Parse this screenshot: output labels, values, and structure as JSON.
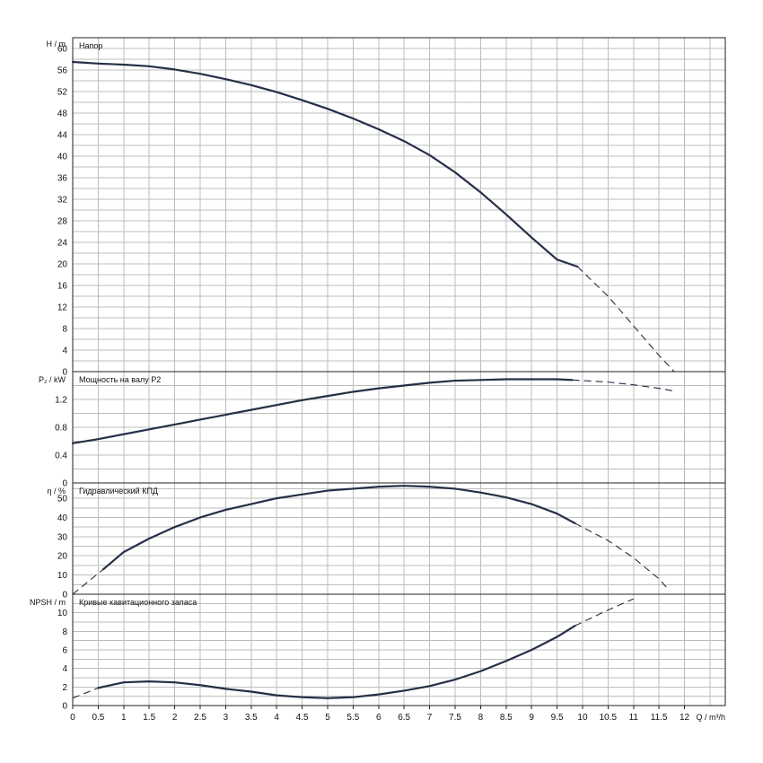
{
  "chart_data": {
    "type": "line",
    "x_axis": {
      "label": "Q / m³/h",
      "ticks": [
        "0",
        "0.5",
        "1",
        "1.5",
        "2",
        "2.5",
        "3",
        "3.5",
        "4",
        "4.5",
        "5",
        "5.5",
        "6",
        "6.5",
        "7",
        "7.5",
        "8",
        "8.5",
        "9",
        "9.5",
        "10",
        "10.5",
        "11",
        "11.5",
        "12"
      ],
      "range": [
        0,
        12.8
      ],
      "grid": true
    },
    "panels": [
      {
        "id": "head",
        "title": "Напор",
        "y_label": "H / m",
        "y_range": [
          0,
          62
        ],
        "y_ticks": [
          "0",
          "4",
          "8",
          "12",
          "16",
          "20",
          "24",
          "28",
          "32",
          "36",
          "40",
          "44",
          "48",
          "52",
          "56",
          "60"
        ],
        "series": [
          {
            "x": [
              0,
              0.5,
              1,
              1.5,
              2,
              2.5,
              3,
              3.5,
              4,
              4.5,
              5,
              5.5,
              6,
              6.5,
              7,
              7.5,
              8,
              8.5,
              9,
              9.5,
              9.9,
              10.5,
              11,
              11.5,
              11.8
            ],
            "y": [
              57.5,
              57.2,
              57.0,
              56.7,
              56.1,
              55.3,
              54.3,
              53.2,
              51.9,
              50.4,
              48.8,
              47.0,
              45.0,
              42.8,
              40.2,
              37.0,
              33.3,
              29.2,
              24.9,
              20.8,
              19.5,
              14.0,
              8.5,
              3.0,
              0.0
            ],
            "solid_until": 9.9
          }
        ]
      },
      {
        "id": "power",
        "title": "Мощность на валу P2",
        "y_label": "P₂ / kW",
        "y_range": [
          0,
          1.6
        ],
        "y_ticks": [
          "0",
          "0.4",
          "0.8",
          "1.2"
        ],
        "series": [
          {
            "x": [
              0,
              0.5,
              1,
              1.5,
              2,
              2.5,
              3,
              3.5,
              4,
              4.5,
              5,
              5.5,
              6,
              6.5,
              7,
              7.5,
              8,
              8.5,
              9,
              9.5,
              9.8,
              10.5,
              11,
              11.5,
              11.8
            ],
            "y": [
              0.57,
              0.63,
              0.7,
              0.77,
              0.84,
              0.91,
              0.98,
              1.05,
              1.12,
              1.19,
              1.25,
              1.31,
              1.36,
              1.4,
              1.44,
              1.47,
              1.48,
              1.49,
              1.49,
              1.49,
              1.48,
              1.45,
              1.41,
              1.36,
              1.32
            ],
            "solid_until": 9.8
          }
        ]
      },
      {
        "id": "efficiency",
        "title": "Гидравлический КПД",
        "y_label": "η / %",
        "y_range": [
          0,
          58
        ],
        "y_ticks": [
          "0",
          "10",
          "20",
          "30",
          "40",
          "50"
        ],
        "series": [
          {
            "x": [
              0,
              0.6,
              1,
              1.5,
              2,
              2.5,
              3,
              3.5,
              4,
              4.5,
              5,
              5.5,
              6,
              6.5,
              7,
              7.5,
              8,
              8.5,
              9,
              9.5,
              9.85,
              10.5,
              11,
              11.5,
              11.7
            ],
            "y": [
              0,
              13,
              22,
              29,
              35,
              40,
              44,
              47,
              50,
              52,
              54,
              55,
              56,
              56.5,
              56,
              55,
              53,
              50.5,
              47,
              42,
              37,
              28,
              19,
              8,
              2
            ],
            "dashed_until": 0.6,
            "solid_until": 9.85
          }
        ]
      },
      {
        "id": "npsh",
        "title": "Кривые кавитационного запаса",
        "y_label": "NPSH / m",
        "y_range": [
          0,
          12
        ],
        "y_ticks": [
          "0",
          "2",
          "4",
          "6",
          "8",
          "10"
        ],
        "series": [
          {
            "x": [
              0,
              0.5,
              1,
              1.5,
              2,
              2.5,
              3,
              3.5,
              4,
              4.5,
              5,
              5.5,
              6,
              6.5,
              7,
              7.5,
              8,
              8.5,
              9,
              9.5,
              9.85,
              10.5,
              11
            ],
            "y": [
              0.8,
              1.9,
              2.5,
              2.6,
              2.5,
              2.2,
              1.8,
              1.5,
              1.1,
              0.9,
              0.8,
              0.9,
              1.2,
              1.6,
              2.1,
              2.8,
              3.7,
              4.8,
              6.0,
              7.4,
              8.6,
              10.3,
              11.5
            ],
            "dashed_until": 0.5,
            "solid_until": 9.85
          }
        ]
      }
    ]
  }
}
